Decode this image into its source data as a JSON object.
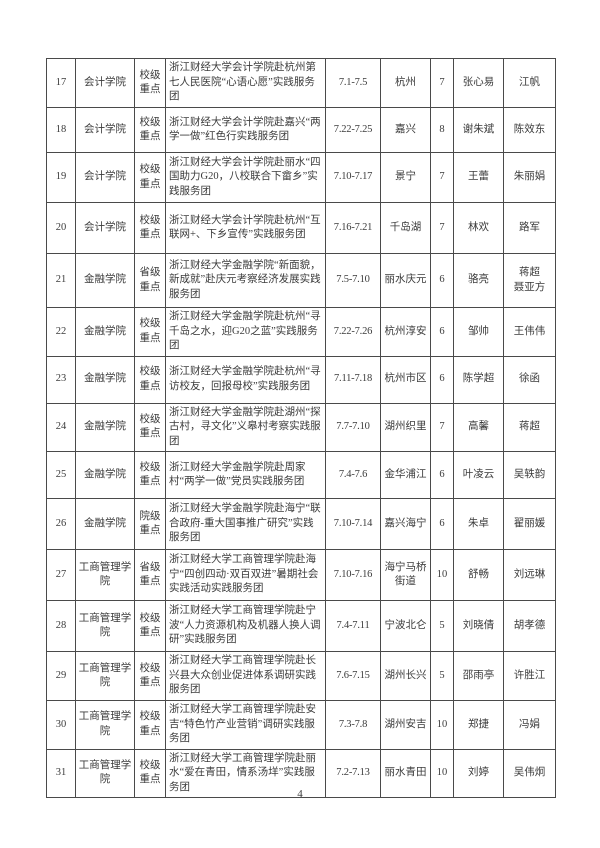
{
  "page": {
    "number": "4"
  },
  "table": {
    "rows": [
      {
        "no": "17",
        "college": "会计学院",
        "level": "校级重点",
        "team": "浙江财经大学会计学院赴杭州第七人民医院“心语心愿”实践服务团",
        "date": "7.1-7.5",
        "place": "杭州",
        "count": "7",
        "leader": "张心易",
        "teacher": "江帆"
      },
      {
        "no": "18",
        "college": "会计学院",
        "level": "校级重点",
        "team": "浙江财经大学会计学院赴嘉兴“两学一做”红色行实践服务团",
        "date": "7.22-7.25",
        "place": "嘉兴",
        "count": "8",
        "leader": "谢朱斌",
        "teacher": "陈效东"
      },
      {
        "no": "19",
        "college": "会计学院",
        "level": "校级重点",
        "team": "浙江财经大学会计学院赴丽水“四国助力G20，八校联合下畲乡”实践服务团",
        "date": "7.10-7.17",
        "place": "景宁",
        "count": "7",
        "leader": "王蕾",
        "teacher": "朱丽娟"
      },
      {
        "no": "20",
        "college": "会计学院",
        "level": "校级重点",
        "team": "浙江财经大学会计学院赴杭州“互联网+、下乡宣传”实践服务团",
        "date": "7.16-7.21",
        "place": "千岛湖",
        "count": "7",
        "leader": "林欢",
        "teacher": "路军"
      },
      {
        "no": "21",
        "college": "金融学院",
        "level": "省级重点",
        "team": "浙江财经大学金融学院“新面貌，新成就”赴庆元考察经济发展实践服务团",
        "date": "7.5-7.10",
        "place": "丽水庆元",
        "count": "6",
        "leader": "骆亮",
        "teacher": "蒋超\n聂亚方"
      },
      {
        "no": "22",
        "college": "金融学院",
        "level": "校级重点",
        "team": "浙江财经大学金融学院赴杭州“寻千岛之水，迎G20之蓝”实践服务团",
        "date": "7.22-7.26",
        "place": "杭州淳安",
        "count": "6",
        "leader": "邹帅",
        "teacher": "王伟伟"
      },
      {
        "no": "23",
        "college": "金融学院",
        "level": "校级重点",
        "team": "浙江财经大学金融学院赴杭州“寻访校友，回报母校”实践服务团",
        "date": "7.11-7.18",
        "place": "杭州市区",
        "count": "6",
        "leader": "陈学超",
        "teacher": "徐函"
      },
      {
        "no": "24",
        "college": "金融学院",
        "level": "校级重点",
        "team": "浙江财经大学金融学院赴湖州“探古村，寻文化”义皋村考察实践服团",
        "date": "7.7-7.10",
        "place": "湖州织里",
        "count": "7",
        "leader": "高馨",
        "teacher": "蒋超"
      },
      {
        "no": "25",
        "college": "金融学院",
        "level": "校级重点",
        "team": "浙江财经大学金融学院赴周家村“两学一做”党员实践服务团",
        "date": "7.4-7.6",
        "place": "金华浦江",
        "count": "6",
        "leader": "叶凌云",
        "teacher": "吴轶韵"
      },
      {
        "no": "26",
        "college": "金融学院",
        "level": "院级重点",
        "team": "浙江财经大学金融学院赴海宁“联合政府-重大国事推广研究”实践服务团",
        "date": "7.10-7.14",
        "place": "嘉兴海宁",
        "count": "6",
        "leader": "朱卓",
        "teacher": "翟丽媛"
      },
      {
        "no": "27",
        "college": "工商管理学院",
        "level": "省级重点",
        "team": "浙江财经大学工商管理学院赴海宁“四创四动·双百双进”暑期社会实践活动实践服务团",
        "date": "7.10-7.16",
        "place": "海宁马桥街道",
        "count": "10",
        "leader": "舒畅",
        "teacher": "刘远琳"
      },
      {
        "no": "28",
        "college": "工商管理学院",
        "level": "校级重点",
        "team": "浙江财经大学工商管理学院赴宁波“人力资源机构及机器人换人调研”实践服务团",
        "date": "7.4-7.11",
        "place": "宁波北仑",
        "count": "5",
        "leader": "刘晓倩",
        "teacher": "胡孝德"
      },
      {
        "no": "29",
        "college": "工商管理学院",
        "level": "校级重点",
        "team": "浙江财经大学工商管理学院赴长兴县大众创业促进体系调研实践服务团",
        "date": "7.6-7.15",
        "place": "湖州长兴",
        "count": "5",
        "leader": "邵雨亭",
        "teacher": "许胜江"
      },
      {
        "no": "30",
        "college": "工商管理学院",
        "level": "校级重点",
        "team": "浙江财经大学工商管理学院赴安吉“特色竹产业营销”调研实践服务团",
        "date": "7.3-7.8",
        "place": "湖州安吉",
        "count": "10",
        "leader": "郑捷",
        "teacher": "冯娟"
      },
      {
        "no": "31",
        "college": "工商管理学院",
        "level": "校级重点",
        "team": "浙江财经大学工商管理学院赴丽水“爱在青田，情系汤垟”实践服务团",
        "date": "7.2-7.13",
        "place": "丽水青田",
        "count": "10",
        "leader": "刘婷",
        "teacher": "吴伟炯"
      }
    ]
  }
}
